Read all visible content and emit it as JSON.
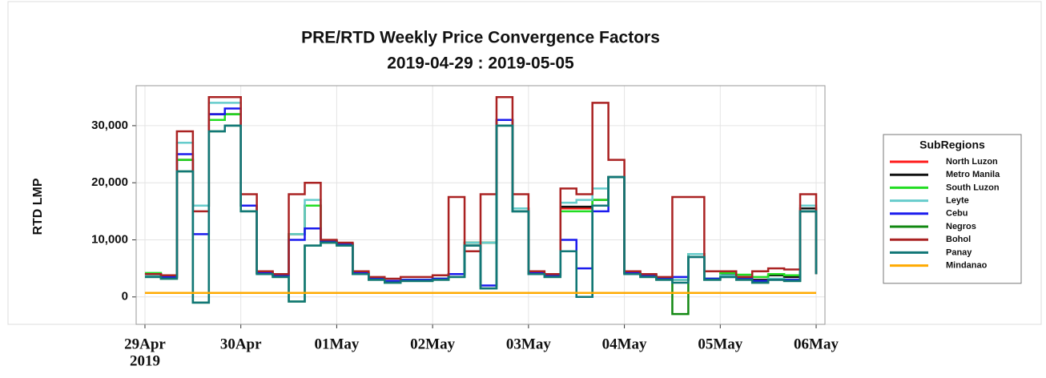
{
  "chart_data": {
    "type": "step-line",
    "title": "PRE/RTD Weekly Price Convergence Factors",
    "subtitle": "2019-04-29 : 2019-05-05",
    "y_label": "RTD LMP",
    "x_year_label": "2019",
    "legend_title": "SubRegions",
    "legend_position": "right",
    "grid": true,
    "xlim": [
      -2.2,
      170.2
    ],
    "xticks": [
      {
        "value": 0,
        "label": "29Apr"
      },
      {
        "value": 24,
        "label": "30Apr"
      },
      {
        "value": 48,
        "label": "01May"
      },
      {
        "value": 72,
        "label": "02May"
      },
      {
        "value": 96,
        "label": "03May"
      },
      {
        "value": 120,
        "label": "04May"
      },
      {
        "value": 144,
        "label": "05May"
      },
      {
        "value": 168,
        "label": "06May"
      }
    ],
    "ylim": [
      -4800,
      37000
    ],
    "yticks": [
      0,
      {
        "value": 10000,
        "label": "10,000"
      },
      {
        "value": 20000,
        "label": "20,000"
      },
      {
        "value": 30000,
        "label": "30,000"
      }
    ],
    "x": [
      0,
      4,
      8,
      12,
      16,
      20,
      24,
      28,
      32,
      36,
      40,
      44,
      48,
      52,
      56,
      60,
      64,
      68,
      72,
      76,
      80,
      84,
      88,
      92,
      96,
      100,
      104,
      108,
      112,
      116,
      120,
      124,
      128,
      132,
      136,
      140,
      144,
      148,
      152,
      156,
      160,
      164,
      168
    ],
    "series": [
      {
        "name": "North Luzon",
        "color": "#ff1a1a",
        "values": [
          4000,
          3500,
          24000,
          16000,
          32000,
          32000,
          16000,
          4200,
          3800,
          11000,
          16000,
          9800,
          9300,
          4200,
          3200,
          2800,
          3000,
          3000,
          3200,
          4000,
          9500,
          9500,
          31000,
          15500,
          4200,
          3800,
          15500,
          15500,
          17000,
          21000,
          4200,
          3800,
          3200,
          3000,
          7500,
          3200,
          4000,
          3500,
          3000,
          3800,
          3500,
          15000,
          4000
        ]
      },
      {
        "name": "Metro Manila",
        "color": "#111111",
        "values": [
          4000,
          3500,
          24000,
          16000,
          32000,
          32000,
          16000,
          4200,
          3800,
          11000,
          16000,
          9800,
          9300,
          4200,
          3200,
          2800,
          3000,
          3000,
          3200,
          4000,
          9500,
          9500,
          31000,
          15500,
          4200,
          3800,
          15800,
          15800,
          17000,
          21000,
          4200,
          3800,
          3200,
          3000,
          7500,
          3200,
          4000,
          3500,
          3000,
          3800,
          3500,
          15500,
          4000
        ]
      },
      {
        "name": "South Luzon",
        "color": "#22dd22",
        "values": [
          4200,
          3800,
          24000,
          16000,
          31000,
          32000,
          16000,
          4200,
          3800,
          11000,
          16000,
          9800,
          9300,
          4200,
          3200,
          2800,
          3000,
          3000,
          3200,
          4000,
          9500,
          9500,
          31000,
          15000,
          4200,
          3800,
          15000,
          15000,
          17000,
          21000,
          4200,
          3800,
          3200,
          3000,
          7500,
          3200,
          4200,
          3900,
          3500,
          4000,
          3800,
          15000,
          4000
        ]
      },
      {
        "name": "Leyte",
        "color": "#66cccc",
        "values": [
          3800,
          3400,
          27000,
          16000,
          34000,
          34000,
          16000,
          4200,
          3800,
          11000,
          17000,
          9800,
          9300,
          4200,
          3200,
          2800,
          3000,
          3000,
          3200,
          4000,
          9500,
          9500,
          31000,
          15500,
          4200,
          3800,
          16500,
          17000,
          19000,
          21000,
          4200,
          3800,
          3200,
          3000,
          7500,
          3200,
          3800,
          3300,
          2800,
          3200,
          3000,
          16000,
          4000
        ]
      },
      {
        "name": "Cebu",
        "color": "#1a1aee",
        "values": [
          4000,
          3500,
          25000,
          11000,
          32000,
          33000,
          16000,
          4200,
          3800,
          10000,
          12000,
          9800,
          9300,
          4200,
          3200,
          2800,
          3000,
          3000,
          3200,
          4000,
          9000,
          2000,
          31000,
          15000,
          4200,
          3800,
          10000,
          5000,
          15000,
          21000,
          4200,
          3800,
          3200,
          3500,
          7000,
          3200,
          3500,
          3200,
          2800,
          3000,
          3000,
          15000,
          4000
        ]
      },
      {
        "name": "Negros",
        "color": "#118811",
        "values": [
          3500,
          3200,
          22000,
          -1000,
          29000,
          30000,
          15000,
          4000,
          3500,
          -800,
          9000,
          9500,
          9000,
          4000,
          3000,
          2500,
          2800,
          2800,
          3000,
          3500,
          9000,
          1500,
          30000,
          15000,
          4000,
          3500,
          8000,
          0,
          16000,
          21000,
          4000,
          3500,
          3000,
          -3000,
          7000,
          3000,
          3500,
          3000,
          2500,
          3000,
          2800,
          15000,
          4000
        ]
      },
      {
        "name": "Bohol",
        "color": "#aa2222",
        "values": [
          4000,
          3800,
          29000,
          15000,
          35000,
          35000,
          18000,
          4500,
          4000,
          18000,
          20000,
          10000,
          9500,
          4500,
          3500,
          3200,
          3500,
          3500,
          3800,
          17500,
          8000,
          18000,
          35000,
          18000,
          4500,
          4000,
          19000,
          18000,
          34000,
          24000,
          4500,
          4000,
          3500,
          17500,
          17500,
          4500,
          4500,
          3500,
          4500,
          5000,
          4800,
          18000,
          4000
        ]
      },
      {
        "name": "Panay",
        "color": "#117777",
        "values": [
          3500,
          3200,
          22000,
          -1000,
          29000,
          30000,
          15000,
          4000,
          3500,
          -800,
          9000,
          9500,
          9000,
          4000,
          3000,
          2500,
          2800,
          2800,
          3000,
          3500,
          9000,
          1500,
          30000,
          15000,
          4000,
          3500,
          8000,
          0,
          16000,
          21000,
          4000,
          3500,
          3000,
          2500,
          7000,
          3000,
          3500,
          3000,
          2500,
          3000,
          2800,
          15000,
          4000
        ]
      },
      {
        "name": "Mindanao",
        "color": "#ffaa00",
        "values": [
          700,
          700,
          700,
          700,
          700,
          700,
          700,
          700,
          700,
          700,
          700,
          700,
          700,
          700,
          700,
          700,
          700,
          700,
          700,
          700,
          700,
          700,
          700,
          700,
          700,
          700,
          700,
          700,
          700,
          700,
          700,
          700,
          700,
          700,
          700,
          700,
          700,
          700,
          700,
          700,
          700,
          700,
          700
        ]
      }
    ]
  }
}
